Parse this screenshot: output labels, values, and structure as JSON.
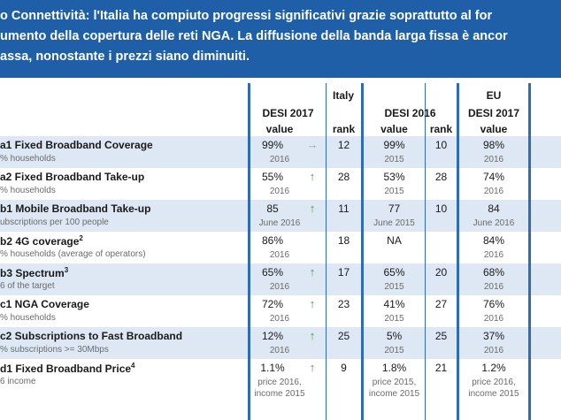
{
  "header": {
    "lines": [
      "o Connettività: l'Italia ha compiuto progressi significativi grazie soprattutto al for",
      "umento della copertura delle reti NGA. La diffusione della banda larga fissa è ancor",
      "assa, nonostante i prezzi siano diminuiti."
    ]
  },
  "columns": {
    "italy": "Italy",
    "desi2017": "DESI 2017",
    "desi2016": "DESI 2016",
    "eu": "EU",
    "eu_desi2017": "DESI 2017",
    "value": "value",
    "rank": "rank"
  },
  "rows": [
    {
      "indicator": "a1 Fixed Broadband Coverage",
      "sup": "",
      "unit": "% households",
      "v17": "99%",
      "trend": "→",
      "trend_dir": "flat",
      "r17": "12",
      "y17": "2016",
      "v16": "99%",
      "r16": "10",
      "y16": "2015",
      "eu": "98%",
      "yeu": "2016"
    },
    {
      "indicator": "a2 Fixed Broadband Take-up",
      "sup": "",
      "unit": "% households",
      "v17": "55%",
      "trend": "↑",
      "trend_dir": "up",
      "r17": "28",
      "y17": "2016",
      "v16": "53%",
      "r16": "28",
      "y16": "2015",
      "eu": "74%",
      "yeu": "2016"
    },
    {
      "indicator": "b1 Mobile Broadband Take-up",
      "sup": "",
      "unit": "ubscriptions per 100 people",
      "v17": "85",
      "trend": "↑",
      "trend_dir": "up",
      "r17": "11",
      "y17": "June 2016",
      "v16": "77",
      "r16": "10",
      "y16": "June 2015",
      "eu": "84",
      "yeu": "June 2016"
    },
    {
      "indicator": "b2 4G coverage",
      "sup": "2",
      "unit": "% households (average of operators)",
      "v17": "86%",
      "trend": "",
      "trend_dir": "none",
      "r17": "18",
      "y17": "2016",
      "v16": "NA",
      "r16": "",
      "y16": "",
      "eu": "84%",
      "yeu": "2016"
    },
    {
      "indicator": "b3 Spectrum",
      "sup": "3",
      "unit": "6 of the target",
      "v17": "65%",
      "trend": "↑",
      "trend_dir": "up",
      "r17": "17",
      "y17": "2016",
      "v16": "65%",
      "r16": "20",
      "y16": "2015",
      "eu": "68%",
      "yeu": "2016"
    },
    {
      "indicator": "c1 NGA Coverage",
      "sup": "",
      "unit": "% households",
      "v17": "72%",
      "trend": "↑",
      "trend_dir": "up",
      "r17": "23",
      "y17": "2016",
      "v16": "41%",
      "r16": "27",
      "y16": "2015",
      "eu": "76%",
      "yeu": "2016"
    },
    {
      "indicator": "c2 Subscriptions to Fast Broadband",
      "sup": "",
      "unit": "% subscriptions >= 30Mbps",
      "v17": "12%",
      "trend": "↑",
      "trend_dir": "up",
      "r17": "25",
      "y17": "2016",
      "v16": "5%",
      "r16": "25",
      "y16": "2015",
      "eu": "37%",
      "yeu": "2016"
    },
    {
      "indicator": "d1 Fixed Broadband Price",
      "sup": "4",
      "unit": "6 income",
      "v17": "1.1%",
      "trend": "↑",
      "trend_dir": "up",
      "r17": "9",
      "y17": "price 2016,\nincome 2015",
      "v16": "1.8%",
      "r16": "21",
      "y16": "price 2015,\nincome 2015",
      "eu": "1.2%",
      "yeu": "price 2016,\nincome 2015"
    }
  ]
}
